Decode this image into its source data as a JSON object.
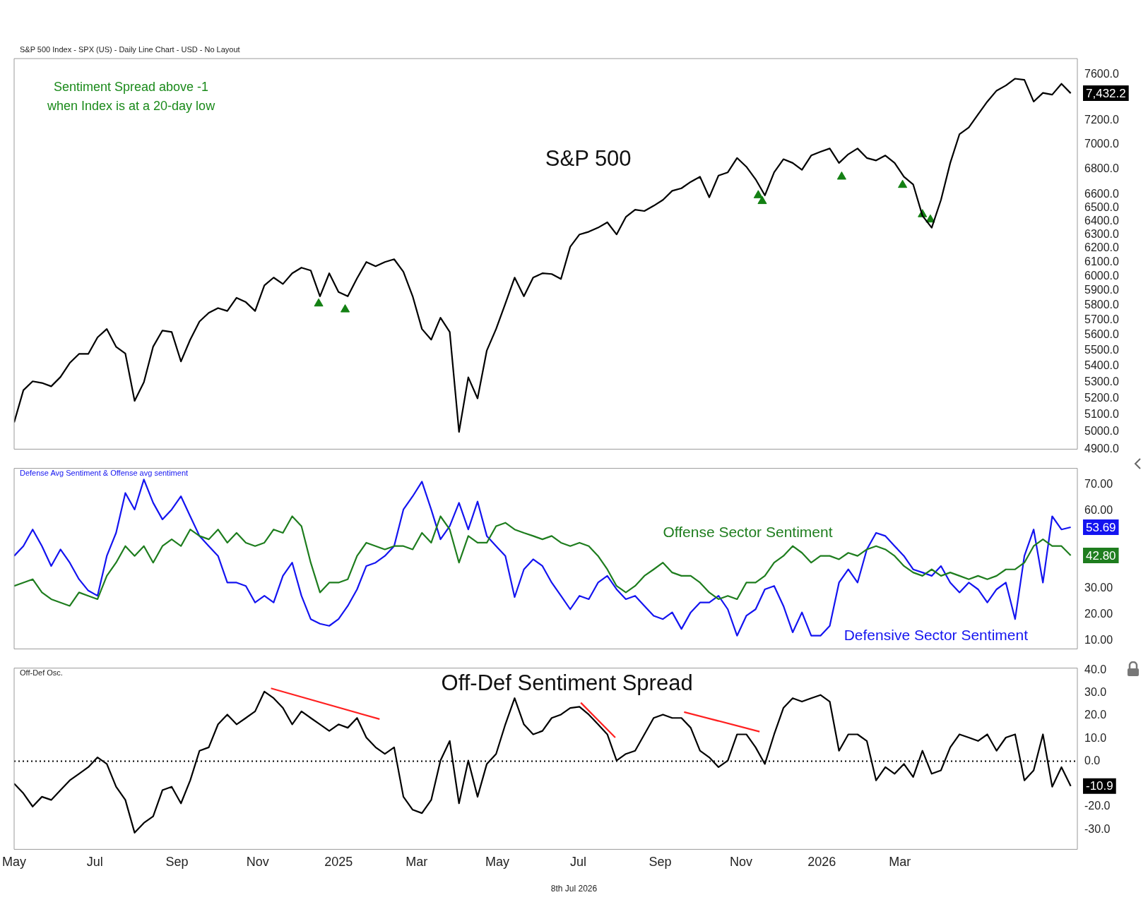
{
  "chart_data": [
    {
      "type": "line",
      "title": "S&P 500",
      "subtitle": "S&P 500 Index - SPX (US) - Daily Line Chart - USD - No Layout",
      "x": [
        "2024-05-01",
        "2024-05-08",
        "2024-05-15",
        "2024-05-22",
        "2024-05-29",
        "2024-06-05",
        "2024-06-12",
        "2024-06-19",
        "2024-06-26",
        "2024-07-03",
        "2024-07-10",
        "2024-07-17",
        "2024-07-24",
        "2024-07-31",
        "2024-08-07",
        "2024-08-14",
        "2024-08-21",
        "2024-08-28",
        "2024-09-04",
        "2024-09-11",
        "2024-09-18",
        "2024-09-25",
        "2024-10-02",
        "2024-10-09",
        "2024-10-16",
        "2024-10-23",
        "2024-10-30",
        "2024-11-06",
        "2024-11-13",
        "2024-11-20",
        "2024-11-27",
        "2024-12-04",
        "2024-12-11",
        "2024-12-18",
        "2024-12-25",
        "2025-01-01",
        "2025-01-08",
        "2025-01-15",
        "2025-01-22",
        "2025-01-29",
        "2025-02-05",
        "2025-02-12",
        "2025-02-19",
        "2025-02-26",
        "2025-03-05",
        "2025-03-12",
        "2025-03-19",
        "2025-03-26",
        "2025-04-02",
        "2025-04-09",
        "2025-04-16",
        "2025-04-23",
        "2025-04-30",
        "2025-05-07",
        "2025-05-14",
        "2025-05-21",
        "2025-05-28",
        "2025-06-04",
        "2025-06-11",
        "2025-06-18",
        "2025-06-25",
        "2025-07-02",
        "2025-07-09",
        "2025-07-16",
        "2025-07-23",
        "2025-07-30",
        "2025-08-06",
        "2025-08-13",
        "2025-08-20",
        "2025-08-27",
        "2025-09-03",
        "2025-09-10",
        "2025-09-17",
        "2025-09-24",
        "2025-10-01",
        "2025-10-08",
        "2025-10-15",
        "2025-10-22",
        "2025-10-29",
        "2025-11-05",
        "2025-11-12",
        "2025-11-19",
        "2025-11-26",
        "2025-12-03",
        "2025-12-10",
        "2025-12-17",
        "2025-12-24",
        "2025-12-31",
        "2026-01-07",
        "2026-01-14",
        "2026-01-21",
        "2026-01-28",
        "2026-02-04",
        "2026-02-11",
        "2026-02-18",
        "2026-02-25",
        "2026-03-04",
        "2026-03-11",
        "2026-03-18",
        "2026-03-25",
        "2026-04-01",
        "2026-04-08",
        "2026-04-15",
        "2026-04-22",
        "2026-04-29",
        "2026-05-06",
        "2026-05-13",
        "2026-05-20",
        "2026-05-27",
        "2026-06-03",
        "2026-06-10",
        "2026-06-17",
        "2026-06-24",
        "2026-07-01",
        "2026-07-08"
      ],
      "series": [
        {
          "color": "#000000",
          "values": [
            5056,
            5250,
            5305,
            5295,
            5274,
            5332,
            5420,
            5478,
            5478,
            5585,
            5640,
            5524,
            5480,
            5185,
            5300,
            5525,
            5630,
            5620,
            5430,
            5570,
            5690,
            5748,
            5780,
            5760,
            5850,
            5820,
            5760,
            5935,
            5990,
            5945,
            6020,
            6060,
            6040,
            5860,
            6020,
            5890,
            5860,
            5985,
            6100,
            6070,
            6100,
            6120,
            6030,
            5860,
            5640,
            5570,
            5715,
            5620,
            5000,
            5330,
            5200,
            5500,
            5640,
            5810,
            5990,
            5860,
            5990,
            6020,
            6015,
            5980,
            6210,
            6300,
            6320,
            6350,
            6390,
            6300,
            6430,
            6485,
            6475,
            6515,
            6560,
            6630,
            6650,
            6700,
            6740,
            6580,
            6750,
            6775,
            6890,
            6820,
            6720,
            6595,
            6775,
            6880,
            6850,
            6795,
            6910,
            6940,
            6967,
            6850,
            6920,
            6967,
            6890,
            6870,
            6910,
            6850,
            6740,
            6680,
            6440,
            6350,
            6560,
            6850,
            7085,
            7140,
            7250,
            7360,
            7455,
            7500,
            7560,
            7550,
            7360,
            7435,
            7420,
            7515,
            7432.2
          ]
        },
        {
          "type": "scatter",
          "color": "#138013",
          "marker": "triangle",
          "x": [
            "2024-12-17",
            "2025-01-06",
            "2025-11-14",
            "2025-11-17",
            "2026-01-16",
            "2026-03-03",
            "2026-03-18",
            "2026-03-24"
          ],
          "values": [
            5810,
            5770,
            6595,
            6550,
            6740,
            6675,
            6450,
            6410
          ]
        }
      ],
      "xlim": [
        "2024-05-01",
        "2026-07-13"
      ],
      "log": "y",
      "ylim": [
        4900,
        7740
      ],
      "yticks": [
        {
          "value": 4900,
          "label": "4900.0"
        },
        {
          "value": 5000,
          "label": "5000.0"
        },
        {
          "value": 5100,
          "label": "5100.0"
        },
        {
          "value": 5200,
          "label": "5200.0"
        },
        {
          "value": 5300,
          "label": "5300.0"
        },
        {
          "value": 5400,
          "label": "5400.0"
        },
        {
          "value": 5500,
          "label": "5500.0"
        },
        {
          "value": 5600,
          "label": "5600.0"
        },
        {
          "value": 5700,
          "label": "5700.0"
        },
        {
          "value": 5800,
          "label": "5800.0"
        },
        {
          "value": 5900,
          "label": "5900.0"
        },
        {
          "value": 6000,
          "label": "6000.0"
        },
        {
          "value": 6100,
          "label": "6100.0"
        },
        {
          "value": 6200,
          "label": "6200.0"
        },
        {
          "value": 6300,
          "label": "6300.0"
        },
        {
          "value": 6400,
          "label": "6400.0"
        },
        {
          "value": 6500,
          "label": "6500.0"
        },
        {
          "value": 6600,
          "label": "6600.0"
        },
        {
          "value": 6800,
          "label": "6800.0"
        },
        {
          "value": 7000,
          "label": "7000.0"
        },
        {
          "value": 7200,
          "label": "7200.0"
        },
        {
          "value": 7600,
          "label": "7600.0"
        }
      ],
      "tick_labels": "y",
      "annotations": [
        "Sentiment Spread above -1\nwhen Index is at a 20-day low",
        {
          "text": "7,432.2",
          "x": "2026-07-08",
          "y": 7432.2
        }
      ]
    },
    {
      "type": "line",
      "subtitle": "Defense Avg Sentiment & Offense avg sentiment",
      "x": [
        "2024-05-01",
        "2024-05-08",
        "2024-05-15",
        "2024-05-22",
        "2024-05-29",
        "2024-06-05",
        "2024-06-12",
        "2024-06-19",
        "2024-06-26",
        "2024-07-03",
        "2024-07-10",
        "2024-07-17",
        "2024-07-24",
        "2024-07-31",
        "2024-08-07",
        "2024-08-14",
        "2024-08-21",
        "2024-08-28",
        "2024-09-04",
        "2024-09-11",
        "2024-09-18",
        "2024-09-25",
        "2024-10-02",
        "2024-10-09",
        "2024-10-16",
        "2024-10-23",
        "2024-10-30",
        "2024-11-06",
        "2024-11-13",
        "2024-11-20",
        "2024-11-27",
        "2024-12-04",
        "2024-12-11",
        "2024-12-18",
        "2024-12-25",
        "2025-01-01",
        "2025-01-08",
        "2025-01-15",
        "2025-01-22",
        "2025-01-29",
        "2025-02-05",
        "2025-02-12",
        "2025-02-19",
        "2025-02-26",
        "2025-03-05",
        "2025-03-12",
        "2025-03-19",
        "2025-03-26",
        "2025-04-02",
        "2025-04-09",
        "2025-04-16",
        "2025-04-23",
        "2025-04-30",
        "2025-05-07",
        "2025-05-14",
        "2025-05-21",
        "2025-05-28",
        "2025-06-04",
        "2025-06-11",
        "2025-06-18",
        "2025-06-25",
        "2025-07-02",
        "2025-07-09",
        "2025-07-16",
        "2025-07-23",
        "2025-07-30",
        "2025-08-06",
        "2025-08-13",
        "2025-08-20",
        "2025-08-27",
        "2025-09-03",
        "2025-09-10",
        "2025-09-17",
        "2025-09-24",
        "2025-10-01",
        "2025-10-08",
        "2025-10-15",
        "2025-10-22",
        "2025-10-29",
        "2025-11-05",
        "2025-11-12",
        "2025-11-19",
        "2025-11-26",
        "2025-12-03",
        "2025-12-10",
        "2025-12-17",
        "2025-12-24",
        "2025-12-31",
        "2026-01-07",
        "2026-01-14",
        "2026-01-21",
        "2026-01-28",
        "2026-02-04",
        "2026-02-11",
        "2026-02-18",
        "2026-02-25",
        "2026-03-04",
        "2026-03-11",
        "2026-03-18",
        "2026-03-25",
        "2026-04-01",
        "2026-04-08",
        "2026-04-15",
        "2026-04-22",
        "2026-04-29",
        "2026-05-06",
        "2026-05-13",
        "2026-05-20",
        "2026-05-27",
        "2026-06-03",
        "2026-06-10",
        "2026-06-17",
        "2026-06-24",
        "2026-07-01",
        "2026-07-08"
      ],
      "series": [
        {
          "name": "Offense Sector Sentiment",
          "color": "#1e7d1e",
          "values": [
            31,
            32.3,
            33.6,
            28.5,
            25.9,
            24.6,
            23.3,
            28.5,
            27.2,
            25.9,
            34.9,
            40,
            46.4,
            42.6,
            46.4,
            40,
            46.4,
            49,
            46.4,
            52.8,
            50.3,
            49,
            52.8,
            47.7,
            51.5,
            47.7,
            46.4,
            47.7,
            52.8,
            51.5,
            57.9,
            54.1,
            40,
            28.5,
            32.3,
            32.3,
            33.6,
            42.6,
            47.7,
            46.4,
            45.1,
            46.4,
            46.4,
            45.1,
            51.5,
            47.7,
            57.9,
            52.8,
            40,
            50.3,
            47.7,
            47.7,
            54.1,
            55.4,
            52.8,
            51.5,
            50.3,
            49,
            50.3,
            47.7,
            46.4,
            47.7,
            46.4,
            42.6,
            37.4,
            31,
            28.5,
            31,
            34.9,
            37.4,
            40,
            36.2,
            34.9,
            34.9,
            32.3,
            28.5,
            25.9,
            27.2,
            25.9,
            32.3,
            32.3,
            34.9,
            40,
            42.6,
            46.4,
            43.8,
            40,
            42.6,
            42.6,
            41.3,
            43.8,
            42.6,
            45.1,
            46.4,
            45.1,
            42.6,
            38.7,
            36.2,
            34.9,
            37.4,
            34.9,
            36.2,
            34.9,
            33.6,
            34.9,
            33.6,
            34.9,
            37.4,
            37.4,
            40,
            46.4,
            49,
            46.4,
            46.4,
            42.8
          ]
        },
        {
          "name": "Defensive Sector Sentiment",
          "color": "#1414f0",
          "values": [
            42.6,
            46.4,
            52.8,
            46.4,
            38.7,
            45.1,
            40,
            33.6,
            29.2,
            27.2,
            42.6,
            51.5,
            66.9,
            60.5,
            72.1,
            63.1,
            56.7,
            60.5,
            65.6,
            57.9,
            50.3,
            46.4,
            42.6,
            32.3,
            32.3,
            31,
            24.6,
            27.2,
            24.6,
            34.9,
            40,
            27.2,
            18.2,
            16.4,
            15.6,
            18.2,
            23.3,
            29.7,
            38.7,
            40,
            42.6,
            46.4,
            60.5,
            65.6,
            71.3,
            60.5,
            49,
            54.1,
            63.1,
            52.8,
            63.6,
            50.3,
            46.4,
            42.6,
            26.7,
            37.4,
            41.3,
            38.7,
            32.3,
            27.2,
            22,
            27.2,
            25.9,
            32.3,
            34.9,
            29.7,
            25.9,
            27.2,
            23.3,
            19.5,
            18.2,
            20.8,
            14.4,
            20.8,
            24.6,
            24.6,
            27.2,
            22,
            11.8,
            19.5,
            22,
            29.7,
            31,
            23.3,
            13.1,
            20.8,
            11.8,
            11.8,
            15.6,
            32.3,
            37.4,
            32.3,
            45.1,
            51.5,
            50.3,
            46.4,
            42.6,
            37.4,
            36.2,
            34.9,
            38.7,
            32.3,
            28.5,
            32.3,
            29.7,
            24.6,
            29.7,
            32.3,
            18.2,
            42.6,
            52.8,
            32.3,
            57.9,
            52.8,
            53.69
          ]
        }
      ],
      "xlim": [
        "2024-05-01",
        "2026-07-13"
      ],
      "ylim": [
        6.7,
        76.4
      ],
      "yticks": [
        {
          "value": 10,
          "label": "10.00"
        },
        {
          "value": 20,
          "label": "20.00"
        },
        {
          "value": 30,
          "label": "30.00"
        },
        {
          "value": 60,
          "label": "60.00"
        },
        {
          "value": 70,
          "label": "70.00"
        }
      ],
      "tick_labels": "y",
      "annotations": [
        {
          "text": "53.69",
          "x": "2026-07-08",
          "y": 53.69
        },
        {
          "text": "42.80",
          "x": "2026-07-08",
          "y": 42.8
        }
      ]
    },
    {
      "type": "line",
      "title": "Off-Def Sentiment Spread",
      "subtitle": "Off-Def Osc.",
      "x": [
        "2024-05-01",
        "2024-05-08",
        "2024-05-15",
        "2024-05-22",
        "2024-05-29",
        "2024-06-05",
        "2024-06-12",
        "2024-06-19",
        "2024-06-26",
        "2024-07-03",
        "2024-07-10",
        "2024-07-17",
        "2024-07-24",
        "2024-07-31",
        "2024-08-07",
        "2024-08-14",
        "2024-08-21",
        "2024-08-28",
        "2024-09-04",
        "2024-09-11",
        "2024-09-18",
        "2024-09-25",
        "2024-10-02",
        "2024-10-09",
        "2024-10-16",
        "2024-10-23",
        "2024-10-30",
        "2024-11-06",
        "2024-11-13",
        "2024-11-20",
        "2024-11-27",
        "2024-12-04",
        "2024-12-11",
        "2024-12-18",
        "2024-12-25",
        "2025-01-01",
        "2025-01-08",
        "2025-01-15",
        "2025-01-22",
        "2025-01-29",
        "2025-02-05",
        "2025-02-12",
        "2025-02-19",
        "2025-02-26",
        "2025-03-05",
        "2025-03-12",
        "2025-03-19",
        "2025-03-26",
        "2025-04-02",
        "2025-04-09",
        "2025-04-16",
        "2025-04-23",
        "2025-04-30",
        "2025-05-07",
        "2025-05-14",
        "2025-05-21",
        "2025-05-28",
        "2025-06-04",
        "2025-06-11",
        "2025-06-18",
        "2025-06-25",
        "2025-07-02",
        "2025-07-09",
        "2025-07-16",
        "2025-07-23",
        "2025-07-30",
        "2025-08-06",
        "2025-08-13",
        "2025-08-20",
        "2025-08-27",
        "2025-09-03",
        "2025-09-10",
        "2025-09-17",
        "2025-09-24",
        "2025-10-01",
        "2025-10-08",
        "2025-10-15",
        "2025-10-22",
        "2025-10-29",
        "2025-11-05",
        "2025-11-12",
        "2025-11-19",
        "2025-11-26",
        "2025-12-03",
        "2025-12-10",
        "2025-12-17",
        "2025-12-24",
        "2025-12-31",
        "2026-01-07",
        "2026-01-14",
        "2026-01-21",
        "2026-01-28",
        "2026-02-04",
        "2026-02-11",
        "2026-02-18",
        "2026-02-25",
        "2026-03-04",
        "2026-03-11",
        "2026-03-18",
        "2026-03-25",
        "2026-04-01",
        "2026-04-08",
        "2026-04-15",
        "2026-04-22",
        "2026-04-29",
        "2026-05-06",
        "2026-05-13",
        "2026-05-20",
        "2026-05-27",
        "2026-06-03",
        "2026-06-10",
        "2026-06-17",
        "2026-06-24",
        "2026-07-01",
        "2026-07-08"
      ],
      "series": [
        {
          "color": "#000000",
          "values": [
            -9.8,
            -14.1,
            -19.9,
            -15.6,
            -17,
            -12.7,
            -8.4,
            -5.5,
            -2.6,
            1.7,
            -1.2,
            -11.2,
            -17,
            -31.4,
            -27.1,
            -24.2,
            -12.7,
            -11.2,
            -18.5,
            -8.4,
            4.6,
            6.1,
            16.2,
            20.5,
            16.2,
            19,
            21.9,
            30.6,
            27.7,
            23.4,
            16.2,
            21.9,
            19,
            16.2,
            13.3,
            16.2,
            14.7,
            19,
            10.4,
            6.1,
            3.2,
            6.1,
            -15.6,
            -21.3,
            -22.8,
            -17,
            0.3,
            8.9,
            -18.5,
            0.3,
            -15.6,
            -1.2,
            3.2,
            16.2,
            27.7,
            16.2,
            11.8,
            13.3,
            19,
            20.5,
            23.4,
            23.9,
            20.5,
            16.2,
            11.8,
            0.3,
            3.2,
            4.6,
            11.8,
            19,
            20.5,
            19,
            19,
            14.7,
            4.6,
            1.7,
            -2.6,
            0.3,
            11.8,
            11.8,
            6.1,
            -1.2,
            11.8,
            23.4,
            27.7,
            26.2,
            27.7,
            29.1,
            26.2,
            4.6,
            11.8,
            11.8,
            8.9,
            -8.4,
            -2.6,
            -5.5,
            -1.2,
            -6.9,
            4.6,
            -5.5,
            -4,
            6.1,
            11.8,
            10.4,
            8.9,
            11.8,
            4.6,
            10.4,
            11.8,
            -8.4,
            -4,
            11.8,
            -11.2,
            -2.6,
            -10.9
          ]
        },
        {
          "type": "line",
          "color": "#ff2020",
          "x": [
            "2024-11-11",
            "2025-02-01"
          ],
          "values": [
            32,
            18.5
          ]
        },
        {
          "type": "line",
          "color": "#ff2020",
          "x": [
            "2025-07-03",
            "2025-07-29"
          ],
          "values": [
            25.7,
            10.4
          ]
        },
        {
          "type": "line",
          "color": "#ff2020",
          "x": [
            "2025-09-19",
            "2025-11-15"
          ],
          "values": [
            21.6,
            13
          ]
        }
      ],
      "xlim": [
        "2024-05-01",
        "2026-07-13"
      ],
      "xticks": [
        {
          "value": "2024-05-01",
          "label": "May"
        },
        {
          "value": "2024-07-01",
          "label": "Jul"
        },
        {
          "value": "2024-09-01",
          "label": "Sep"
        },
        {
          "value": "2024-11-01",
          "label": "Nov"
        },
        {
          "value": "2025-01-01",
          "label": "2025"
        },
        {
          "value": "2025-03-01",
          "label": "Mar"
        },
        {
          "value": "2025-05-01",
          "label": "May"
        },
        {
          "value": "2025-07-01",
          "label": "Jul"
        },
        {
          "value": "2025-09-01",
          "label": "Sep"
        },
        {
          "value": "2025-11-01",
          "label": "Nov"
        },
        {
          "value": "2026-01-01",
          "label": "2026"
        },
        {
          "value": "2026-03-01",
          "label": "Mar"
        }
      ],
      "ylim": [
        -38.7,
        40.9
      ],
      "yticks": [
        {
          "value": -30,
          "label": "-30.0"
        },
        {
          "value": -20,
          "label": "-20.0"
        },
        {
          "value": 0,
          "label": "0.0"
        },
        {
          "value": 10,
          "label": "10.0"
        },
        {
          "value": 20,
          "label": "20.0"
        },
        {
          "value": 30,
          "label": "30.0"
        },
        {
          "value": 40,
          "label": "40.0"
        }
      ],
      "ref_lines": [
        {
          "axis": "y",
          "value": 0,
          "color": "#000000",
          "line_style": "dotted"
        }
      ],
      "annotations": [
        {
          "text": "-10.9",
          "x": "2026-07-08",
          "y": -10.9
        },
        "8th Jul 2026"
      ]
    }
  ]
}
